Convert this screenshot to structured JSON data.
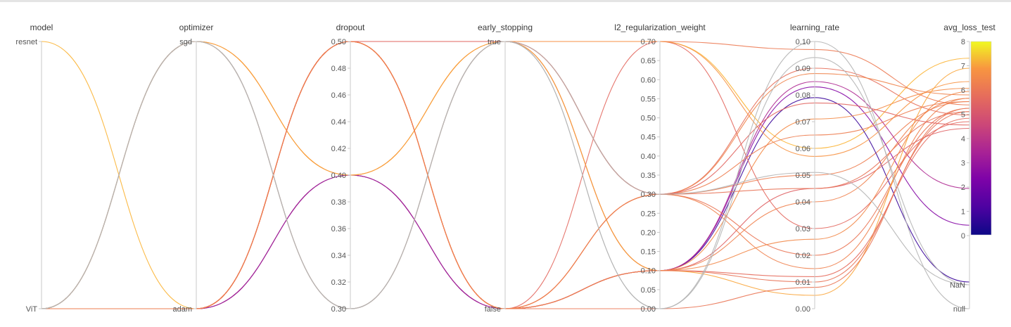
{
  "chart_data": {
    "type": "parallel_coordinates",
    "axes": [
      {
        "name": "model",
        "kind": "categorical",
        "ticks": [
          "resnet",
          "ViT"
        ],
        "values": [
          "resnet",
          "ViT"
        ]
      },
      {
        "name": "optimizer",
        "kind": "categorical",
        "ticks": [
          "sgd",
          "adam"
        ],
        "values": [
          "sgd",
          "adam"
        ]
      },
      {
        "name": "dropout",
        "kind": "numeric",
        "range": [
          0.3,
          0.5
        ],
        "ticks": [
          "0.30",
          "0.32",
          "0.34",
          "0.36",
          "0.38",
          "0.40",
          "0.42",
          "0.44",
          "0.46",
          "0.48",
          "0.50"
        ]
      },
      {
        "name": "early_stopping",
        "kind": "categorical",
        "ticks": [
          "true",
          "false"
        ],
        "values": [
          "true",
          "false"
        ]
      },
      {
        "name": "l2_regularization_weight",
        "kind": "numeric",
        "range": [
          0,
          0.7
        ],
        "ticks": [
          "0.00",
          "0.05",
          "0.10",
          "0.15",
          "0.20",
          "0.25",
          "0.30",
          "0.35",
          "0.40",
          "0.45",
          "0.50",
          "0.55",
          "0.60",
          "0.65",
          "0.70"
        ]
      },
      {
        "name": "learning_rate",
        "kind": "numeric",
        "range": [
          0,
          0.1
        ],
        "ticks": [
          "0.00",
          "0.01",
          "0.02",
          "0.03",
          "0.04",
          "0.05",
          "0.06",
          "0.07",
          "0.08",
          "0.09",
          "0.10"
        ]
      },
      {
        "name": "avg_loss_test",
        "kind": "numeric",
        "range": [
          0,
          8
        ],
        "ticks": [
          "0",
          "1",
          "2",
          "3",
          "4",
          "5",
          "6",
          "7",
          "8"
        ],
        "extra_ticks": [
          "NaN",
          "null"
        ]
      }
    ],
    "colorbar": {
      "range": [
        0,
        8
      ],
      "ticks": [
        "0",
        "1",
        "2",
        "3",
        "4",
        "5",
        "6",
        "7",
        "8"
      ],
      "colormap": "plasma"
    },
    "runs": [
      {
        "model": "resnet",
        "optimizer": "adam",
        "dropout": 0.5,
        "early_stopping": "true",
        "l2": 0.7,
        "lr": 0.06,
        "loss": 7.5
      },
      {
        "model": "ViT",
        "optimizer": "adam",
        "dropout": 0.5,
        "early_stopping": "false",
        "l2": 0.3,
        "lr": 0.05,
        "loss": 6.2
      },
      {
        "model": "ViT",
        "optimizer": "adam",
        "dropout": 0.4,
        "early_stopping": "false",
        "l2": 0.1,
        "lr": 0.079,
        "loss": 0.8
      },
      {
        "model": "ViT",
        "optimizer": "adam",
        "dropout": 0.4,
        "early_stopping": "false",
        "l2": 0.1,
        "lr": 0.083,
        "loss": 2.5
      },
      {
        "model": "ViT",
        "optimizer": "adam",
        "dropout": 0.4,
        "early_stopping": "false",
        "l2": 0.1,
        "lr": 0.085,
        "loss": 3.6
      },
      {
        "model": "ViT",
        "optimizer": "sgd",
        "dropout": 0.4,
        "early_stopping": "true",
        "l2": 0.7,
        "lr": 0.097,
        "loss": 6.1
      },
      {
        "model": "ViT",
        "optimizer": "sgd",
        "dropout": 0.3,
        "early_stopping": "true",
        "l2": 0.3,
        "lr": 0.09,
        "loss": 5.8
      },
      {
        "model": "ViT",
        "optimizer": "sgd",
        "dropout": 0.3,
        "early_stopping": "true",
        "l2": 0.1,
        "lr": 0.071,
        "loss": 6.6
      },
      {
        "model": "ViT",
        "optimizer": "adam",
        "dropout": 0.5,
        "early_stopping": "true",
        "l2": 0.1,
        "lr": 0.045,
        "loss": 5.4
      },
      {
        "model": "ViT",
        "optimizer": "adam",
        "dropout": 0.5,
        "early_stopping": "false",
        "l2": 0.7,
        "lr": 0.03,
        "loss": 5.6
      },
      {
        "model": "ViT",
        "optimizer": "adam",
        "dropout": 0.5,
        "early_stopping": "true",
        "l2": 0.3,
        "lr": 0.02,
        "loss": 6.0
      },
      {
        "model": "ViT",
        "optimizer": "adam",
        "dropout": 0.5,
        "early_stopping": "false",
        "l2": 0.1,
        "lr": 0.01,
        "loss": 5.9
      },
      {
        "model": "ViT",
        "optimizer": "adam",
        "dropout": 0.5,
        "early_stopping": "false",
        "l2": 0.3,
        "lr": 0.015,
        "loss": 6.3
      },
      {
        "model": "ViT",
        "optimizer": "adam",
        "dropout": 0.5,
        "early_stopping": "false",
        "l2": 0.1,
        "lr": 0.026,
        "loss": 6.5
      },
      {
        "model": "ViT",
        "optimizer": "sgd",
        "dropout": 0.4,
        "early_stopping": "true",
        "l2": 0.7,
        "lr": 0.057,
        "loss": 6.8
      },
      {
        "model": "ViT",
        "optimizer": "adam",
        "dropout": 0.5,
        "early_stopping": "false",
        "l2": 0.3,
        "lr": 0.088,
        "loss": 6.4
      },
      {
        "model": "ViT",
        "optimizer": "sgd",
        "dropout": 0.4,
        "early_stopping": "true",
        "l2": 0.1,
        "lr": 0.005,
        "loss": 7.2
      },
      {
        "model": "ViT",
        "optimizer": "adam",
        "dropout": 0.5,
        "early_stopping": "false",
        "l2": 0.0,
        "lr": 0.008,
        "loss": 6.0
      },
      {
        "model": "ViT",
        "optimizer": "adam",
        "dropout": 0.5,
        "early_stopping": "false",
        "l2": 0.1,
        "lr": 0.012,
        "loss": 5.7
      },
      {
        "model": "ViT",
        "optimizer": "adam",
        "dropout": 0.5,
        "early_stopping": "false",
        "l2": 0.3,
        "lr": 0.065,
        "loss": 6.2
      },
      {
        "model": "ViT",
        "optimizer": "adam",
        "dropout": 0.5,
        "early_stopping": "true",
        "l2": 0.3,
        "lr": 0.045,
        "loss": 5.9
      },
      {
        "model": "ViT",
        "optimizer": "adam",
        "dropout": 0.5,
        "early_stopping": "true",
        "l2": 0.3,
        "lr": 0.077,
        "loss": 5.5
      },
      {
        "model": "ViT",
        "optimizer": "adam",
        "dropout": 0.5,
        "early_stopping": "false",
        "l2": 0.1,
        "lr": 0.04,
        "loss": 6.3
      },
      {
        "model": "ViT",
        "optimizer": "sgd",
        "dropout": 0.3,
        "early_stopping": "true",
        "l2": 0.0,
        "lr": 0.1,
        "loss": "null"
      },
      {
        "model": "ViT",
        "optimizer": "sgd",
        "dropout": 0.3,
        "early_stopping": "true",
        "l2": 0.0,
        "lr": 0.094,
        "loss": "NaN"
      },
      {
        "model": "ViT",
        "optimizer": "sgd",
        "dropout": 0.3,
        "early_stopping": "true",
        "l2": 0.3,
        "lr": 0.051,
        "loss": "NaN"
      }
    ]
  }
}
